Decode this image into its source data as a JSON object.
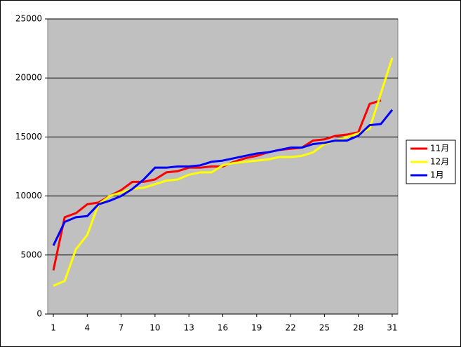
{
  "chart_data": {
    "type": "line",
    "x": [
      1,
      2,
      3,
      4,
      5,
      6,
      7,
      8,
      9,
      10,
      11,
      12,
      13,
      14,
      15,
      16,
      17,
      18,
      19,
      20,
      21,
      22,
      23,
      24,
      25,
      26,
      27,
      28,
      29,
      30,
      31
    ],
    "xlim": [
      0.5,
      31.5
    ],
    "xticks": [
      1,
      4,
      7,
      10,
      13,
      16,
      19,
      22,
      25,
      28,
      31
    ],
    "ylim": [
      0,
      25000
    ],
    "yticks": [
      0,
      5000,
      10000,
      15000,
      20000,
      25000
    ],
    "grid": true,
    "legend": "right",
    "series": [
      {
        "name": "11月",
        "color": "#ff0000",
        "values": [
          3700,
          8200,
          8550,
          9300,
          9450,
          10000,
          10500,
          11200,
          11200,
          11400,
          12000,
          12100,
          12400,
          12400,
          12500,
          12500,
          12900,
          13200,
          13400,
          13700,
          13900,
          14000,
          14100,
          14700,
          14800,
          15100,
          15200,
          15400,
          17800,
          18100,
          null
        ]
      },
      {
        "name": "12月",
        "color": "#ffff00",
        "values": [
          2400,
          2800,
          5500,
          6700,
          9300,
          10000,
          10300,
          10600,
          10700,
          11000,
          11300,
          11400,
          11800,
          12000,
          12000,
          12600,
          12800,
          12900,
          13000,
          13100,
          13300,
          13300,
          13400,
          13700,
          14400,
          14700,
          15000,
          15300,
          15700,
          18700,
          21700
        ]
      },
      {
        "name": "1月",
        "color": "#0000ff",
        "values": [
          5800,
          7800,
          8200,
          8300,
          9300,
          9600,
          10000,
          10600,
          11400,
          12400,
          12400,
          12500,
          12500,
          12600,
          12900,
          13000,
          13200,
          13400,
          13600,
          13700,
          13900,
          14100,
          14100,
          14400,
          14500,
          14700,
          14700,
          15100,
          16000,
          16100,
          17300
        ]
      }
    ]
  }
}
